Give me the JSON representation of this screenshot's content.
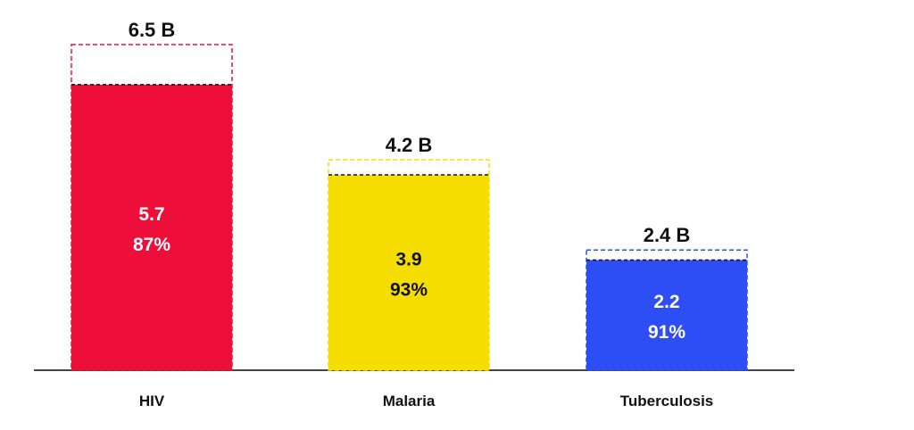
{
  "chart_data": {
    "type": "bar",
    "categories": [
      "HIV",
      "Malaria",
      "Tuberculosis"
    ],
    "series": [
      {
        "values": [
          5.7,
          3.9,
          2.2
        ]
      },
      {
        "values": [
          6.5,
          4.2,
          2.4
        ]
      }
    ],
    "filled_value_labels": [
      "5.7",
      "3.9",
      "2.2"
    ],
    "percent_labels": [
      "87%",
      "93%",
      "91%"
    ],
    "total_labels": [
      "6.5 B",
      "4.2 B",
      "2.4 B"
    ],
    "colors": [
      "#ee0e3a",
      "#f5dd00",
      "#2e4ef5"
    ],
    "inner_text_colors": [
      "#ffffff",
      "#111111",
      "#ffffff"
    ],
    "ylim": [
      0,
      6.5
    ],
    "grid": false
  }
}
